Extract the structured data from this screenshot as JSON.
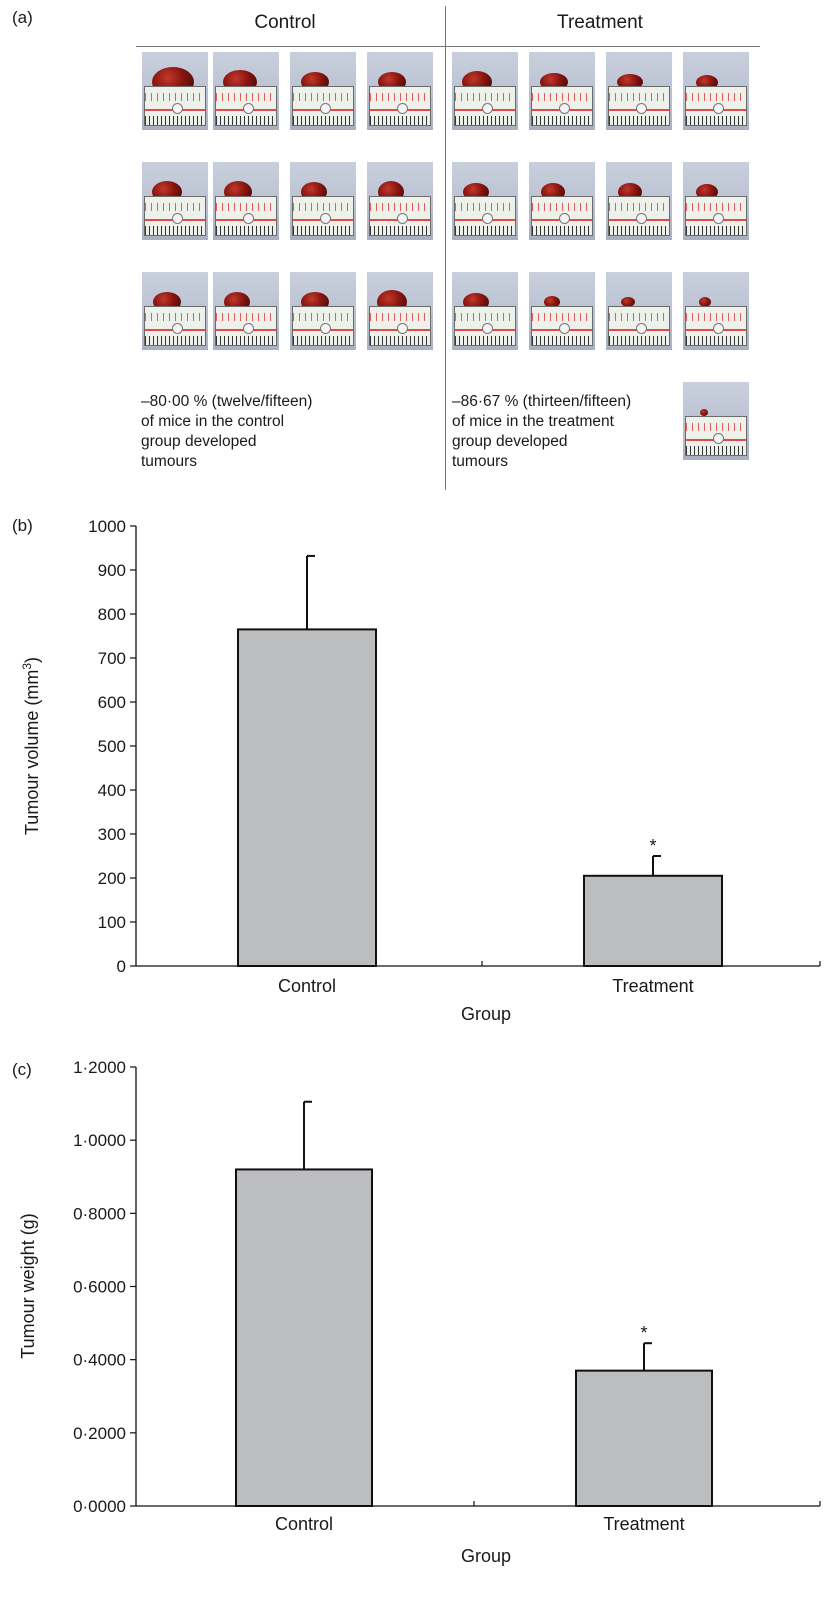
{
  "panels": {
    "a": "(a)",
    "b": "(b)",
    "c": "(c)"
  },
  "photo_panel": {
    "control_title": "Control",
    "treatment_title": "Treatment",
    "control_note": "–80·00 % (twelve/fifteen)\nof mice in the control\ngroup developed\ntumours",
    "treatment_note": "–86·67 % (thirteen/fifteen)\nof mice in the treatment\ngroup developed\ntumours",
    "control_photo_count": 12,
    "treatment_photo_count": 13
  },
  "chart_data": [
    {
      "type": "bar",
      "categories": [
        "Control",
        "Treatment"
      ],
      "values": [
        765,
        205
      ],
      "error_upper": [
        932,
        250
      ],
      "annotations": [
        "",
        "*"
      ],
      "xlabel": "Group",
      "ylabel": "Tumour volume (mm3)",
      "ylim": [
        0,
        1000
      ],
      "yticks": [
        "0",
        "100",
        "200",
        "300",
        "400",
        "500",
        "600",
        "700",
        "800",
        "900",
        "1000"
      ],
      "tick_values": [
        0,
        100,
        200,
        300,
        400,
        500,
        600,
        700,
        800,
        900,
        1000
      ],
      "bar_color": "#bcbdbf",
      "grid": false
    },
    {
      "type": "bar",
      "categories": [
        "Control",
        "Treatment"
      ],
      "values": [
        0.92,
        0.37
      ],
      "error_upper": [
        1.105,
        0.445
      ],
      "annotations": [
        "",
        "*"
      ],
      "xlabel": "Group",
      "ylabel": "Tumour weight (g)",
      "ylim": [
        0,
        1.2
      ],
      "yticks": [
        "0·0000",
        "0·2000",
        "0·4000",
        "0·6000",
        "0·8000",
        "1·0000",
        "1·2000"
      ],
      "tick_values": [
        0,
        0.2,
        0.4,
        0.6,
        0.8,
        1.0,
        1.2
      ],
      "bar_color": "#bcbdbf",
      "grid": false
    }
  ]
}
